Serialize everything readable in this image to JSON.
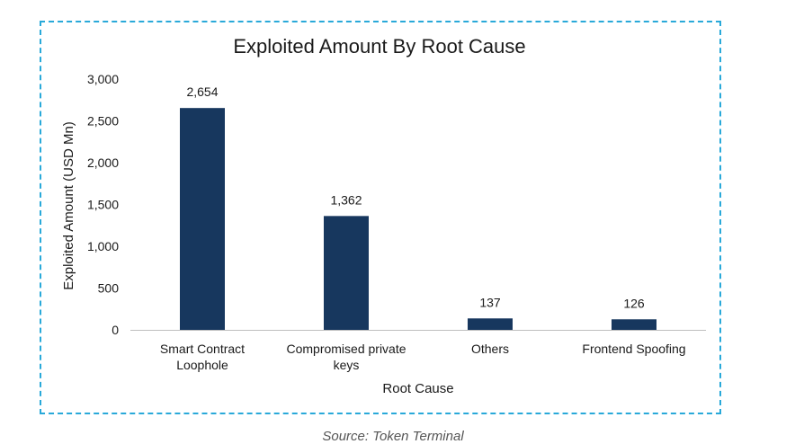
{
  "chart_data": {
    "type": "bar",
    "title": "Exploited Amount By Root Cause",
    "xlabel": "Root Cause",
    "ylabel": "Exploited Amount  (USD Mn)",
    "ylim": [
      0,
      3000
    ],
    "yticks": [
      "0",
      "500",
      "1,000",
      "1,500",
      "2,000",
      "2,500",
      "3,000"
    ],
    "ytick_values": [
      0,
      500,
      1000,
      1500,
      2000,
      2500,
      3000
    ],
    "categories": [
      [
        "Smart Contract",
        "Loophole"
      ],
      [
        "Compromised private",
        "keys"
      ],
      [
        "Others"
      ],
      [
        "Frontend Spoofing"
      ]
    ],
    "values": [
      2654,
      1362,
      137,
      126
    ],
    "data_labels": [
      "2,654",
      "1,362",
      "137",
      "126"
    ],
    "grid": false,
    "legend": "none",
    "bar_color": "#17375e",
    "frame_color": "#29a9d9"
  },
  "source_text": "Source: Token Terminal"
}
